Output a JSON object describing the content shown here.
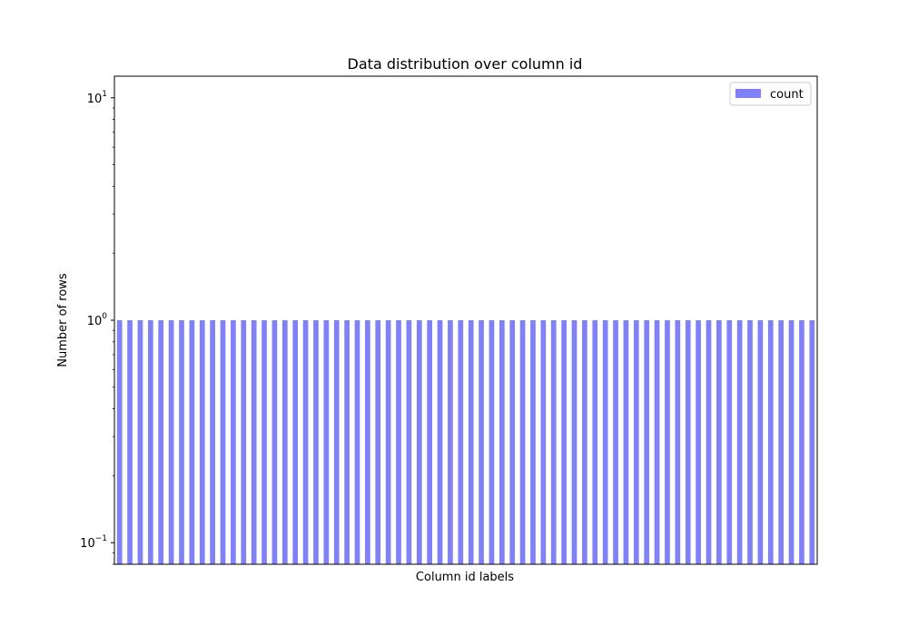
{
  "chart_data": {
    "type": "bar",
    "title": "Data distribution over column id",
    "xlabel": "Column id labels",
    "ylabel": "Number of rows",
    "y_scale": "log",
    "ylim": [
      0.08,
      12.5
    ],
    "y_ticks": [
      {
        "value": 0.1,
        "base": "10",
        "exp": "−1"
      },
      {
        "value": 1,
        "base": "10",
        "exp": "0"
      },
      {
        "value": 10,
        "base": "10",
        "exp": "1"
      }
    ],
    "x_tick_labels_visible": false,
    "grid": false,
    "legend_position": "top-right",
    "series": [
      {
        "name": "count",
        "color": "#8080f7",
        "values": [
          1,
          1,
          1,
          1,
          1,
          1,
          1,
          1,
          1,
          1,
          1,
          1,
          1,
          1,
          1,
          1,
          1,
          1,
          1,
          1,
          1,
          1,
          1,
          1,
          1,
          1,
          1,
          1,
          1,
          1,
          1,
          1,
          1,
          1,
          1,
          1,
          1,
          1,
          1,
          1,
          1,
          1,
          1,
          1,
          1,
          1,
          1,
          1,
          1,
          1,
          1,
          1,
          1,
          1,
          1,
          1,
          1,
          1,
          1,
          1,
          1,
          1,
          1,
          1,
          1,
          1,
          1,
          1
        ]
      }
    ]
  }
}
